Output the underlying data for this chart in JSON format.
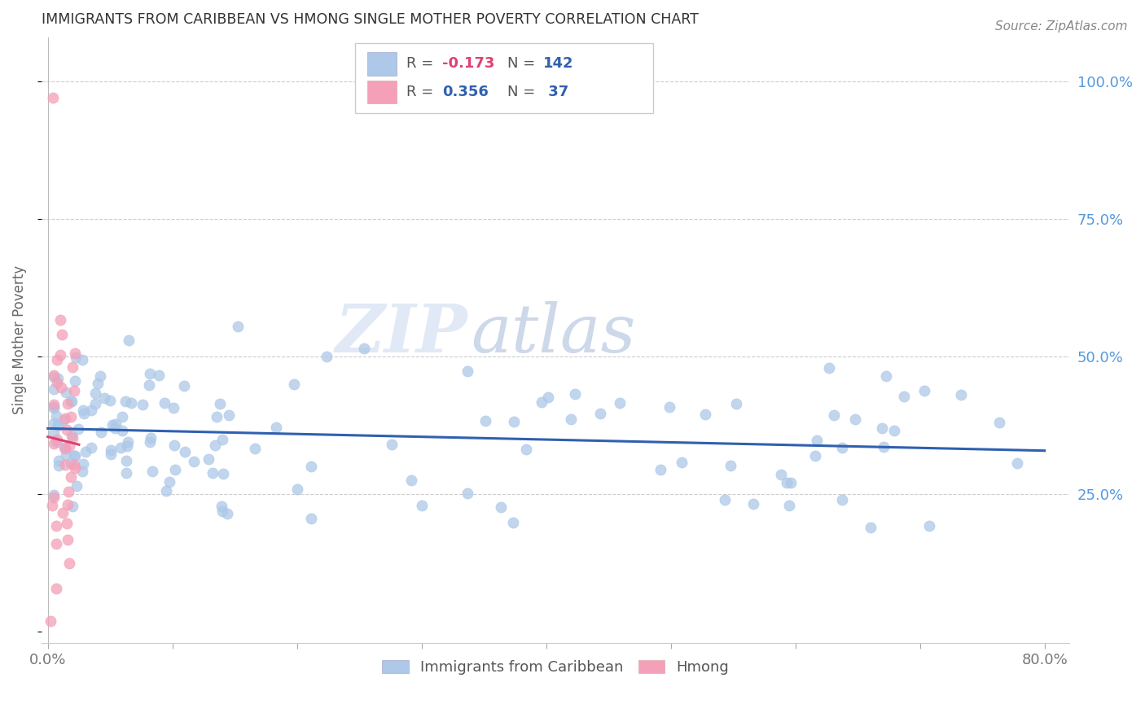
{
  "title": "IMMIGRANTS FROM CARIBBEAN VS HMONG SINGLE MOTHER POVERTY CORRELATION CHART",
  "source": "Source: ZipAtlas.com",
  "ylabel": "Single Mother Poverty",
  "caribbean_R": -0.173,
  "caribbean_N": 142,
  "hmong_R": 0.356,
  "hmong_N": 37,
  "caribbean_color": "#adc8e8",
  "hmong_color": "#f4a0b8",
  "caribbean_line_color": "#3060b0",
  "hmong_line_color": "#e04070",
  "hmong_line_dashed_color": "#f4a0b8",
  "legend_label_caribbean": "Immigrants from Caribbean",
  "legend_label_hmong": "Hmong",
  "watermark_zip": "ZIP",
  "watermark_atlas": "atlas",
  "xlim": [
    -0.005,
    0.82
  ],
  "ylim": [
    -0.02,
    1.08
  ],
  "grid_color": "#cccccc",
  "title_color": "#333333",
  "source_color": "#888888",
  "axis_color": "#999999",
  "right_tick_color": "#5599dd",
  "legend_box_R1": "R = -0.173",
  "legend_box_N1": "N = 142",
  "legend_box_R2": "R =  0.356",
  "legend_box_N2": "N =  37",
  "legend_R_color1": "#e04070",
  "legend_R_color2": "#3060b0",
  "legend_N_color": "#3060b0"
}
